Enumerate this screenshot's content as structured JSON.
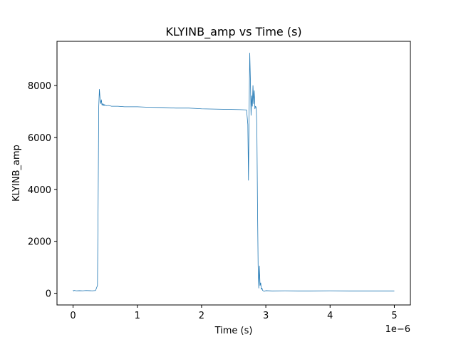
{
  "chart_data": {
    "type": "line",
    "title": "KLYINB_amp vs Time (s)",
    "xlabel": "Time (s)",
    "ylabel": "KLYINB_amp",
    "x_offset_label": "1e−6",
    "xlim": [
      -2.5e-07,
      5.25e-06
    ],
    "ylim": [
      -450,
      9700
    ],
    "xticks": [
      0,
      1e-06,
      2e-06,
      3e-06,
      4e-06,
      5e-06
    ],
    "xtick_labels": [
      "0",
      "1",
      "2",
      "3",
      "4",
      "5"
    ],
    "yticks": [
      0,
      2000,
      4000,
      6000,
      8000
    ],
    "ytick_labels": [
      "0",
      "2000",
      "4000",
      "6000",
      "8000"
    ],
    "grid": false,
    "series": [
      {
        "color": "#1f77b4",
        "x": [
          0,
          1e-08,
          2e-08,
          5e-08,
          1e-07,
          1.5e-07,
          2e-07,
          2.5e-07,
          3e-07,
          3.5e-07,
          3.8e-07,
          3.9e-07,
          4e-07,
          4.1e-07,
          4.2e-07,
          4.3e-07,
          4.4e-07,
          4.5e-07,
          4.6e-07,
          4.7e-07,
          4.8e-07,
          4.9e-07,
          5e-07,
          5.2e-07,
          5.5e-07,
          6e-07,
          7e-07,
          8e-07,
          1e-06,
          1.2e-06,
          1.4e-06,
          1.6e-06,
          1.8e-06,
          2e-06,
          2.2e-06,
          2.4e-06,
          2.6e-06,
          2.7e-06,
          2.72e-06,
          2.73e-06,
          2.74e-06,
          2.75e-06,
          2.76e-06,
          2.77e-06,
          2.78e-06,
          2.79e-06,
          2.8e-06,
          2.81e-06,
          2.82e-06,
          2.83e-06,
          2.84e-06,
          2.85e-06,
          2.86e-06,
          2.87e-06,
          2.88e-06,
          2.89e-06,
          2.9e-06,
          2.91e-06,
          2.92e-06,
          2.93e-06,
          2.94e-06,
          2.95e-06,
          2.97e-06,
          3e-06,
          3.1e-06,
          3.3e-06,
          3.5e-06,
          3.7e-06,
          4e-06,
          4.3e-06,
          4.6e-06,
          5e-06
        ],
        "y": [
          120,
          90,
          110,
          95,
          100,
          95,
          105,
          100,
          95,
          105,
          300,
          3500,
          7200,
          7850,
          7500,
          7300,
          7450,
          7250,
          7300,
          7220,
          7280,
          7230,
          7250,
          7220,
          7230,
          7200,
          7200,
          7180,
          7180,
          7160,
          7150,
          7130,
          7130,
          7100,
          7090,
          7080,
          7070,
          7060,
          6500,
          4350,
          7000,
          9250,
          8200,
          6850,
          7600,
          7200,
          8000,
          7300,
          7800,
          7100,
          7200,
          7150,
          6500,
          3500,
          1100,
          200,
          1050,
          300,
          400,
          150,
          200,
          110,
          80,
          100,
          90,
          95,
          90,
          90,
          95,
          90,
          90,
          90
        ]
      }
    ]
  }
}
